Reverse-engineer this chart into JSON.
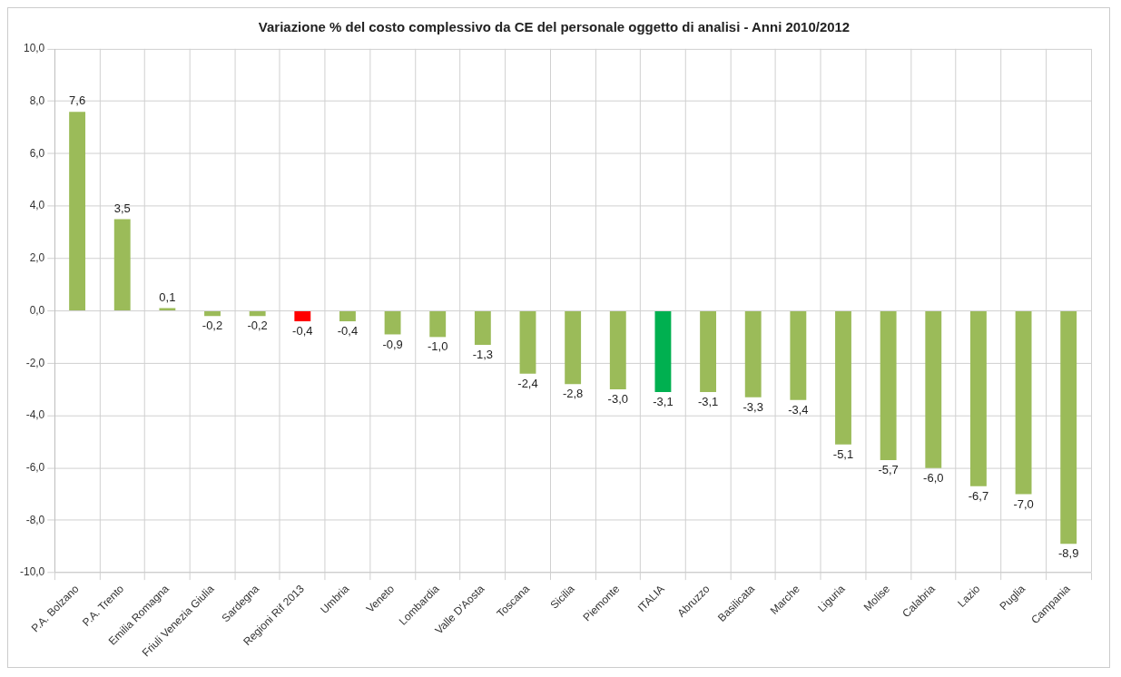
{
  "chart_data": {
    "type": "bar",
    "title": "Variazione % del costo complessivo da CE del personale oggetto di analisi - Anni 2010/2012",
    "categories": [
      "P.A. Bolzano",
      "P.A. Trento",
      "Emilia Romagna",
      "Friuli Venezia Giulia",
      "Sardegna",
      "Regioni Rif 2013",
      "Umbria",
      "Veneto",
      "Lombardia",
      "Valle D'Aosta",
      "Toscana",
      "Sicilia",
      "Piemonte",
      "ITALIA",
      "Abruzzo",
      "Basilicata",
      "Marche",
      "Liguria",
      "Molise",
      "Calabria",
      "Lazio",
      "Puglia",
      "Campania"
    ],
    "values": [
      7.6,
      3.5,
      0.1,
      -0.2,
      -0.2,
      -0.4,
      -0.4,
      -0.9,
      -1.0,
      -1.3,
      -2.4,
      -2.8,
      -3.0,
      -3.1,
      -3.1,
      -3.3,
      -3.4,
      -5.1,
      -5.7,
      -6.0,
      -6.7,
      -7.0,
      -8.9
    ],
    "value_labels": [
      "7,6",
      "3,5",
      "0,1",
      "-0,2",
      "-0,2",
      "-0,4",
      "-0,4",
      "-0,9",
      "-1,0",
      "-1,3",
      "-2,4",
      "-2,8",
      "-3,0",
      "-3,1",
      "-3,1",
      "-3,3",
      "-3,4",
      "-5,1",
      "-5,7",
      "-6,0",
      "-6,7",
      "-7,0",
      "-8,9"
    ],
    "colors": [
      "#9bbb59",
      "#9bbb59",
      "#9bbb59",
      "#9bbb59",
      "#9bbb59",
      "#ff0000",
      "#9bbb59",
      "#9bbb59",
      "#9bbb59",
      "#9bbb59",
      "#9bbb59",
      "#9bbb59",
      "#9bbb59",
      "#00b050",
      "#9bbb59",
      "#9bbb59",
      "#9bbb59",
      "#9bbb59",
      "#9bbb59",
      "#9bbb59",
      "#9bbb59",
      "#9bbb59",
      "#9bbb59"
    ],
    "ylim": [
      -10,
      10
    ],
    "yticks": [
      {
        "value": -10,
        "label": "-10,0"
      },
      {
        "value": -8,
        "label": "-8,0"
      },
      {
        "value": -6,
        "label": "-6,0"
      },
      {
        "value": -4,
        "label": "-4,0"
      },
      {
        "value": -2,
        "label": "-2,0"
      },
      {
        "value": 0,
        "label": "0,0"
      },
      {
        "value": 2,
        "label": "2,0"
      },
      {
        "value": 4,
        "label": "4,0"
      },
      {
        "value": 6,
        "label": "6,0"
      },
      {
        "value": 8,
        "label": "8,0"
      },
      {
        "value": 10,
        "label": "10,0"
      }
    ],
    "grid": true
  }
}
